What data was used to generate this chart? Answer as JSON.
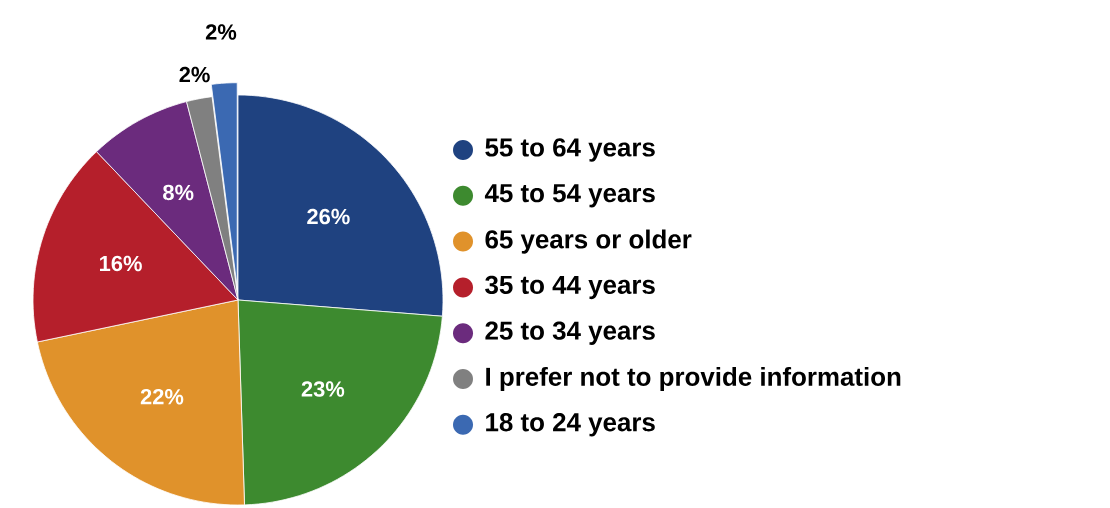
{
  "chart_data": {
    "type": "pie",
    "categories": [
      "55 to 64 years",
      "45 to 54 years",
      "65 years or older",
      "35 to 44 years",
      "25 to 34 years",
      "I prefer not to provide information",
      "18 to 24 years"
    ],
    "values": [
      26,
      23,
      22,
      16,
      8,
      2,
      2
    ],
    "value_labels": [
      "26%",
      "23%",
      "22%",
      "16%",
      "8%",
      "2%",
      "2%"
    ],
    "colors": [
      "#1f4280",
      "#3d8a2f",
      "#e0922b",
      "#b51f2b",
      "#6b2b7d",
      "#808080",
      "#3b69b2"
    ],
    "legend": "right"
  }
}
